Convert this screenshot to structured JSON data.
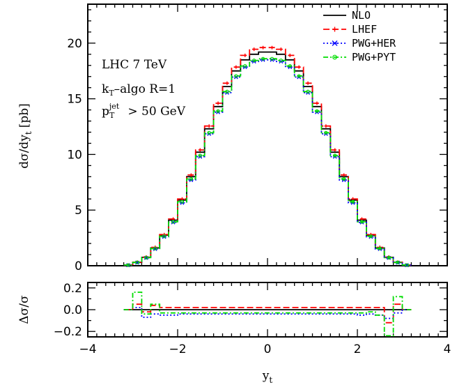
{
  "chart_data": [
    {
      "type": "line",
      "panel": "main",
      "ylabel": "dσ/dy",
      "ylabel_sub": "t",
      "ylabel_unit": "[pb]",
      "xlim": [
        -4,
        4
      ],
      "ylim": [
        0,
        23.5
      ],
      "yticks": [
        0,
        5,
        10,
        15,
        20
      ],
      "grid": false,
      "legend_position": "top-right",
      "annotations": {
        "line1": "LHC 7 TeV",
        "line2_main": "k",
        "line2_sub": "T",
        "line2_rest": "–algo R=1",
        "line3_main": "p",
        "line3_sub": "T",
        "line3_sup": "jet",
        "line3_rest": " > 50 GeV"
      },
      "bin_edges": [
        -3.2,
        -3.0,
        -2.8,
        -2.6,
        -2.4,
        -2.2,
        -2.0,
        -1.8,
        -1.6,
        -1.4,
        -1.2,
        -1.0,
        -0.8,
        -0.6,
        -0.4,
        -0.2,
        0.0,
        0.2,
        0.4,
        0.6,
        0.8,
        1.0,
        1.2,
        1.4,
        1.6,
        1.8,
        2.0,
        2.2,
        2.4,
        2.6,
        2.8,
        3.0,
        3.2
      ],
      "series": [
        {
          "name": "NLO",
          "color": "#000000",
          "dash": "",
          "marker": "none",
          "values": [
            0.05,
            0.3,
            0.75,
            1.6,
            2.75,
            4.1,
            5.9,
            8.0,
            10.2,
            12.3,
            14.3,
            16.1,
            17.5,
            18.5,
            19.0,
            19.2,
            19.2,
            19.0,
            18.5,
            17.5,
            16.1,
            14.3,
            12.3,
            10.2,
            8.0,
            5.9,
            4.1,
            2.75,
            1.6,
            0.75,
            0.3,
            0.05
          ]
        },
        {
          "name": "LHEF",
          "color": "#ff0000",
          "dash": "9,4",
          "marker": "plus",
          "values": [
            0.05,
            0.32,
            0.78,
            1.65,
            2.8,
            4.2,
            6.0,
            8.15,
            10.4,
            12.55,
            14.6,
            16.4,
            17.85,
            18.9,
            19.45,
            19.6,
            19.6,
            19.45,
            18.9,
            17.85,
            16.4,
            14.6,
            12.55,
            10.4,
            8.15,
            6.0,
            4.2,
            2.8,
            1.65,
            0.78,
            0.32,
            0.05
          ]
        },
        {
          "name": "PWG+HER",
          "color": "#0000ff",
          "dash": "2,3",
          "marker": "star",
          "values": [
            0.05,
            0.28,
            0.7,
            1.5,
            2.6,
            3.9,
            5.65,
            7.7,
            9.8,
            11.85,
            13.8,
            15.55,
            16.95,
            17.85,
            18.35,
            18.5,
            18.5,
            18.35,
            17.85,
            16.95,
            15.55,
            13.8,
            11.85,
            9.8,
            7.7,
            5.65,
            3.9,
            2.6,
            1.5,
            0.7,
            0.28,
            0.05
          ]
        },
        {
          "name": "PWG+PYT",
          "color": "#00dd00",
          "dash": "7,3,2,3",
          "marker": "circle",
          "values": [
            0.06,
            0.3,
            0.73,
            1.55,
            2.65,
            3.95,
            5.75,
            7.8,
            9.9,
            11.95,
            13.9,
            15.65,
            17.05,
            17.95,
            18.45,
            18.6,
            18.6,
            18.45,
            17.95,
            17.05,
            15.65,
            13.9,
            11.95,
            9.9,
            7.8,
            5.75,
            3.95,
            2.65,
            1.55,
            0.73,
            0.3,
            0.06
          ]
        }
      ]
    },
    {
      "type": "line",
      "panel": "ratio",
      "ylabel": "Δσ/σ",
      "xlabel": "y",
      "xlabel_sub": "t",
      "xlim": [
        -4,
        4
      ],
      "ylim": [
        -0.25,
        0.25
      ],
      "xticks": [
        -4,
        -2,
        0,
        2,
        4
      ],
      "xtick_labels": [
        "−4",
        "−2",
        "0",
        "2",
        "4"
      ],
      "yticks": [
        -0.2,
        0.0,
        0.2
      ],
      "ytick_labels": [
        "−0.2",
        "0.0",
        "0.2"
      ],
      "bin_edges": [
        -3.2,
        -3.0,
        -2.8,
        -2.6,
        -2.4,
        -2.2,
        -2.0,
        -1.8,
        -1.6,
        -1.4,
        -1.2,
        -1.0,
        -0.8,
        -0.6,
        -0.4,
        -0.2,
        0.0,
        0.2,
        0.4,
        0.6,
        0.8,
        1.0,
        1.2,
        1.4,
        1.6,
        1.8,
        2.0,
        2.2,
        2.4,
        2.6,
        2.8,
        3.0,
        3.2
      ],
      "series": [
        {
          "name": "NLO",
          "color": "#000000",
          "dash": "",
          "values": [
            0,
            0,
            0,
            0,
            0,
            0,
            0,
            0,
            0,
            0,
            0,
            0,
            0,
            0,
            0,
            0,
            0,
            0,
            0,
            0,
            0,
            0,
            0,
            0,
            0,
            0,
            0,
            0,
            0,
            0,
            0,
            0
          ]
        },
        {
          "name": "LHEF",
          "color": "#ff0000",
          "dash": "9,4",
          "values": [
            0.0,
            0.05,
            -0.02,
            0.04,
            0.02,
            0.02,
            0.02,
            0.02,
            0.02,
            0.02,
            0.02,
            0.02,
            0.02,
            0.02,
            0.02,
            0.02,
            0.02,
            0.02,
            0.02,
            0.02,
            0.02,
            0.02,
            0.02,
            0.02,
            0.02,
            0.02,
            0.02,
            0.02,
            0.02,
            -0.12,
            0.05,
            0.0
          ]
        },
        {
          "name": "PWG+HER",
          "color": "#0000ff",
          "dash": "2,3",
          "values": [
            0.0,
            0.02,
            -0.07,
            -0.04,
            -0.05,
            -0.05,
            -0.04,
            -0.04,
            -0.04,
            -0.04,
            -0.04,
            -0.04,
            -0.04,
            -0.04,
            -0.04,
            -0.04,
            -0.04,
            -0.04,
            -0.04,
            -0.04,
            -0.04,
            -0.04,
            -0.04,
            -0.04,
            -0.04,
            -0.04,
            -0.05,
            -0.04,
            -0.05,
            -0.08,
            -0.03,
            0.0
          ]
        },
        {
          "name": "PWG+PYT",
          "color": "#00dd00",
          "dash": "7,3,2,3",
          "values": [
            0.0,
            0.16,
            -0.04,
            0.05,
            -0.03,
            -0.03,
            -0.03,
            -0.03,
            -0.03,
            -0.03,
            -0.03,
            -0.03,
            -0.03,
            -0.03,
            -0.03,
            -0.03,
            -0.03,
            -0.03,
            -0.03,
            -0.03,
            -0.03,
            -0.03,
            -0.03,
            -0.03,
            -0.03,
            -0.03,
            -0.03,
            -0.02,
            -0.05,
            -0.24,
            0.12,
            0.0
          ]
        }
      ]
    }
  ]
}
